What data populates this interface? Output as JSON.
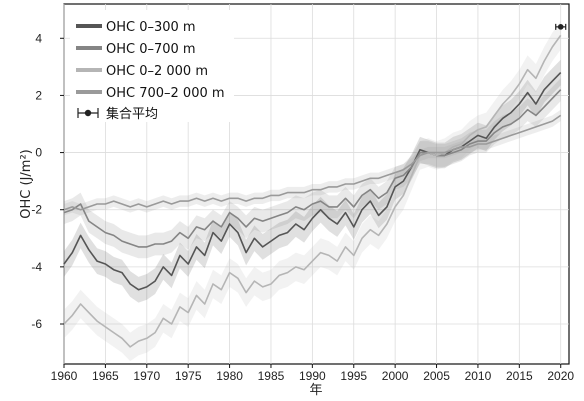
{
  "chart_data": {
    "type": "line",
    "xlabel": "年",
    "ylabel": "OHC (J/m²)",
    "xlim": [
      1960,
      2021
    ],
    "ylim": [
      -7.4,
      5.2
    ],
    "xticks": [
      1960,
      1965,
      1970,
      1975,
      1980,
      1985,
      1990,
      1995,
      2000,
      2005,
      2010,
      2015,
      2020
    ],
    "yticks": [
      -6,
      -4,
      -2,
      0,
      2,
      4
    ],
    "ytick_labels": [
      "-6",
      "-4",
      "-2",
      "0",
      "2",
      "4"
    ],
    "grid": true,
    "legend_position": "top-left",
    "series": [
      {
        "name": "OHC 0–300 m",
        "color": "#555555",
        "x": [
          1960,
          1961,
          1962,
          1963,
          1964,
          1965,
          1966,
          1967,
          1968,
          1969,
          1970,
          1971,
          1972,
          1973,
          1974,
          1975,
          1976,
          1977,
          1978,
          1979,
          1980,
          1981,
          1982,
          1983,
          1984,
          1985,
          1986,
          1987,
          1988,
          1989,
          1990,
          1991,
          1992,
          1993,
          1994,
          1995,
          1996,
          1997,
          1998,
          1999,
          2000,
          2001,
          2002,
          2003,
          2004,
          2005,
          2006,
          2007,
          2008,
          2009,
          2010,
          2011,
          2012,
          2013,
          2014,
          2015,
          2016,
          2017,
          2018,
          2019,
          2020
        ],
        "y": [
          -3.9,
          -3.5,
          -2.9,
          -3.4,
          -3.8,
          -3.9,
          -4.1,
          -4.2,
          -4.6,
          -4.8,
          -4.7,
          -4.5,
          -4.0,
          -4.3,
          -3.6,
          -3.9,
          -3.3,
          -3.6,
          -2.8,
          -3.1,
          -2.5,
          -2.8,
          -3.5,
          -3.0,
          -3.3,
          -3.1,
          -2.9,
          -2.8,
          -2.5,
          -2.7,
          -2.3,
          -2.0,
          -2.3,
          -2.5,
          -2.1,
          -2.6,
          -2.0,
          -1.7,
          -2.2,
          -1.9,
          -1.2,
          -1.0,
          -0.5,
          0.1,
          0.0,
          -0.1,
          -0.1,
          0.1,
          0.2,
          0.4,
          0.6,
          0.5,
          0.9,
          1.2,
          1.4,
          1.7,
          2.1,
          1.7,
          2.2,
          2.5,
          2.8
        ]
      },
      {
        "name": "OHC 0–700 m",
        "color": "#858585",
        "x": [
          1960,
          1961,
          1962,
          1963,
          1964,
          1965,
          1966,
          1967,
          1968,
          1969,
          1970,
          1971,
          1972,
          1973,
          1974,
          1975,
          1976,
          1977,
          1978,
          1979,
          1980,
          1981,
          1982,
          1983,
          1984,
          1985,
          1986,
          1987,
          1988,
          1989,
          1990,
          1991,
          1992,
          1993,
          1994,
          1995,
          1996,
          1997,
          1998,
          1999,
          2000,
          2001,
          2002,
          2003,
          2004,
          2005,
          2006,
          2007,
          2008,
          2009,
          2010,
          2011,
          2012,
          2013,
          2014,
          2015,
          2016,
          2017,
          2018,
          2019,
          2020
        ],
        "y": [
          -2.1,
          -2.0,
          -1.8,
          -2.4,
          -2.6,
          -2.8,
          -2.9,
          -3.1,
          -3.2,
          -3.3,
          -3.3,
          -3.2,
          -3.2,
          -3.1,
          -2.8,
          -3.0,
          -2.6,
          -2.7,
          -2.4,
          -2.6,
          -2.1,
          -2.3,
          -2.6,
          -2.3,
          -2.4,
          -2.3,
          -2.2,
          -2.1,
          -1.9,
          -2.0,
          -1.8,
          -1.7,
          -1.9,
          -1.9,
          -1.6,
          -1.9,
          -1.5,
          -1.3,
          -1.6,
          -1.4,
          -0.9,
          -0.8,
          -0.5,
          0.0,
          0.0,
          -0.1,
          -0.1,
          0.0,
          0.1,
          0.3,
          0.4,
          0.4,
          0.7,
          0.9,
          1.0,
          1.2,
          1.5,
          1.3,
          1.6,
          1.9,
          2.2
        ]
      },
      {
        "name": "OHC 0–2 000 m",
        "color": "#b5b5b5",
        "x": [
          1960,
          1961,
          1962,
          1963,
          1964,
          1965,
          1966,
          1967,
          1968,
          1969,
          1970,
          1971,
          1972,
          1973,
          1974,
          1975,
          1976,
          1977,
          1978,
          1979,
          1980,
          1981,
          1982,
          1983,
          1984,
          1985,
          1986,
          1987,
          1988,
          1989,
          1990,
          1991,
          1992,
          1993,
          1994,
          1995,
          1996,
          1997,
          1998,
          1999,
          2000,
          2001,
          2002,
          2003,
          2004,
          2005,
          2006,
          2007,
          2008,
          2009,
          2010,
          2011,
          2012,
          2013,
          2014,
          2015,
          2016,
          2017,
          2018,
          2019,
          2020
        ],
        "y": [
          -6.0,
          -5.7,
          -5.3,
          -5.6,
          -5.9,
          -6.1,
          -6.3,
          -6.5,
          -6.8,
          -6.6,
          -6.5,
          -6.3,
          -5.8,
          -6.0,
          -5.4,
          -5.6,
          -5.0,
          -5.3,
          -4.6,
          -4.8,
          -4.2,
          -4.4,
          -4.9,
          -4.5,
          -4.7,
          -4.6,
          -4.3,
          -4.2,
          -4.0,
          -4.1,
          -3.8,
          -3.5,
          -3.6,
          -3.8,
          -3.3,
          -3.6,
          -3.0,
          -2.7,
          -2.9,
          -2.5,
          -1.9,
          -1.5,
          -0.8,
          -0.1,
          0.0,
          -0.1,
          0.0,
          0.2,
          0.3,
          0.6,
          0.8,
          0.9,
          1.3,
          1.7,
          2.0,
          2.4,
          2.9,
          2.6,
          3.2,
          3.7,
          4.1
        ]
      },
      {
        "name": "OHC 700–2 000 m",
        "color": "#9a9a9a",
        "x": [
          1960,
          1961,
          1962,
          1963,
          1964,
          1965,
          1966,
          1967,
          1968,
          1969,
          1970,
          1971,
          1972,
          1973,
          1974,
          1975,
          1976,
          1977,
          1978,
          1979,
          1980,
          1981,
          1982,
          1983,
          1984,
          1985,
          1986,
          1987,
          1988,
          1989,
          1990,
          1991,
          1992,
          1993,
          1994,
          1995,
          1996,
          1997,
          1998,
          1999,
          2000,
          2001,
          2002,
          2003,
          2004,
          2005,
          2006,
          2007,
          2008,
          2009,
          2010,
          2011,
          2012,
          2013,
          2014,
          2015,
          2016,
          2017,
          2018,
          2019,
          2020
        ],
        "y": [
          -2.0,
          -1.9,
          -2.0,
          -1.9,
          -1.8,
          -1.8,
          -1.7,
          -1.8,
          -1.9,
          -1.8,
          -1.9,
          -1.8,
          -1.7,
          -1.8,
          -1.7,
          -1.7,
          -1.6,
          -1.7,
          -1.6,
          -1.7,
          -1.6,
          -1.6,
          -1.7,
          -1.6,
          -1.6,
          -1.5,
          -1.5,
          -1.4,
          -1.4,
          -1.4,
          -1.3,
          -1.3,
          -1.2,
          -1.2,
          -1.1,
          -1.1,
          -1.0,
          -0.9,
          -0.9,
          -0.8,
          -0.7,
          -0.6,
          -0.4,
          -0.1,
          0.0,
          0.0,
          0.0,
          0.1,
          0.2,
          0.2,
          0.3,
          0.3,
          0.4,
          0.5,
          0.6,
          0.7,
          0.8,
          0.9,
          1.0,
          1.1,
          1.3
        ]
      }
    ],
    "legend": {
      "entries": [
        "OHC 0–300 m",
        "OHC 0–700 m",
        "OHC 0–2 000 m",
        "OHC 700–2 000 m",
        "集合平均"
      ]
    },
    "ensemble_mean_marker": {
      "label": "集合平均",
      "x": 2020,
      "y": 4.4
    }
  }
}
